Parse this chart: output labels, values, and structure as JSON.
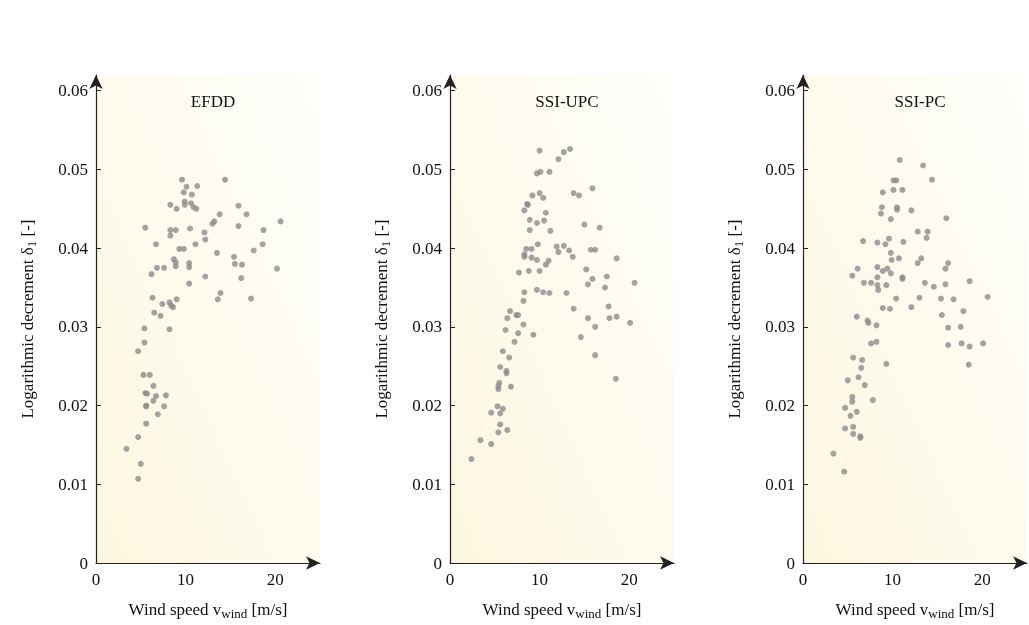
{
  "chart_data": [
    {
      "type": "scatter",
      "title": "EFDD",
      "xlabel": "Wind speed v$_{wind}$ [m/s]",
      "ylabel": "Logarithmic decrement δ$_{1}$ [-]",
      "xlim": [
        0,
        25
      ],
      "xticks": [
        0,
        10,
        20
      ],
      "ylim": [
        0,
        0.062
      ],
      "yticks": [
        0,
        0.01,
        0.02,
        0.03,
        0.04,
        0.05,
        0.06
      ],
      "grid": false,
      "marker": "circle",
      "color": "#8c8c8c",
      "x": [
        9.6,
        14.4,
        10.1,
        11.3,
        9.8,
        10.7,
        8.3,
        9.0,
        9.9,
        9.9,
        10.6,
        10.9,
        11.2,
        15.9,
        16.8,
        13.8,
        13.2,
        13.0,
        20.6,
        5.5,
        15.9,
        8.3,
        8.9,
        10.5,
        8.3,
        12.1,
        18.7,
        12.2,
        6.7,
        11.1,
        18.6,
        9.3,
        9.8,
        17.6,
        13.5,
        15.4,
        8.7,
        8.9,
        8.9,
        10.4,
        10.4,
        15.5,
        16.3,
        20.2,
        6.8,
        7.6,
        6.2,
        12.2,
        16.2,
        10.4,
        13.9,
        13.6,
        17.3,
        6.3,
        9.0,
        7.4,
        8.2,
        8.4,
        8.6,
        6.5,
        7.2,
        5.4,
        8.2,
        5.4,
        4.7,
        5.3,
        6.0,
        6.4,
        5.5,
        5.7,
        6.7,
        7.8,
        6.4,
        5.6,
        5.6,
        7.6,
        6.9,
        5.6,
        4.7,
        3.4,
        5.0,
        4.7
      ],
      "values": [
        0.0487,
        0.0487,
        0.0478,
        0.0479,
        0.0471,
        0.0468,
        0.0455,
        0.045,
        0.0459,
        0.0455,
        0.0457,
        0.0452,
        0.045,
        0.0454,
        0.0443,
        0.0443,
        0.0434,
        0.0431,
        0.0434,
        0.0426,
        0.0428,
        0.0423,
        0.0423,
        0.0425,
        0.0416,
        0.042,
        0.0423,
        0.0411,
        0.0405,
        0.0405,
        0.0405,
        0.0399,
        0.0399,
        0.0397,
        0.0394,
        0.0389,
        0.0386,
        0.0382,
        0.0377,
        0.0381,
        0.0376,
        0.038,
        0.0379,
        0.0374,
        0.0375,
        0.0375,
        0.0367,
        0.0364,
        0.0362,
        0.0355,
        0.0343,
        0.0335,
        0.0336,
        0.0337,
        0.0335,
        0.0329,
        0.0331,
        0.0327,
        0.0325,
        0.0318,
        0.0314,
        0.0298,
        0.0297,
        0.028,
        0.0269,
        0.0239,
        0.0239,
        0.0225,
        0.0216,
        0.0215,
        0.0212,
        0.0213,
        0.0206,
        0.02,
        0.0199,
        0.0199,
        0.0189,
        0.0177,
        0.016,
        0.0145,
        0.0126,
        0.0107
      ]
    },
    {
      "type": "scatter",
      "title": "SSI-UPC",
      "xlabel": "Wind speed v$_{wind}$ [m/s]",
      "ylabel": "Logarithmic decrement δ$_{1}$ [-]",
      "xlim": [
        0,
        25
      ],
      "xticks": [
        0,
        10,
        20
      ],
      "ylim": [
        0,
        0.062
      ],
      "yticks": [
        0,
        0.01,
        0.02,
        0.03,
        0.04,
        0.05,
        0.06
      ],
      "grid": false,
      "marker": "circle",
      "color": "#8c8c8c",
      "x": [
        10.0,
        12.7,
        13.4,
        12.1,
        9.7,
        10.1,
        11.1,
        15.9,
        13.8,
        14.4,
        8.7,
        9.2,
        10.0,
        10.4,
        8.3,
        8.6,
        9.7,
        10.7,
        10.5,
        8.9,
        8.9,
        11.2,
        15.0,
        16.7,
        8.5,
        9.8,
        9.1,
        8.3,
        8.3,
        9.1,
        9.7,
        11.9,
        12.1,
        12.7,
        13.3,
        13.7,
        15.7,
        16.2,
        18.6,
        11.0,
        10.7,
        8.8,
        10.0,
        7.7,
        15.2,
        17.5,
        15.9,
        20.6,
        15.4,
        17.3,
        9.7,
        10.4,
        11.1,
        13.0,
        8.3,
        8.2,
        17.7,
        13.8,
        6.7,
        6.4,
        7.4,
        7.6,
        15.4,
        17.8,
        18.6,
        16.2,
        20.1,
        8.2,
        7.6,
        9.3,
        6.2,
        7.2,
        14.6,
        5.9,
        6.6,
        16.2,
        5.6,
        6.3,
        6.3,
        5.5,
        5.4,
        5.4,
        6.8,
        18.5,
        5.3,
        5.9,
        4.6,
        5.6,
        5.6,
        5.4,
        6.4,
        3.4,
        4.6,
        2.4
      ],
      "values": [
        0.0524,
        0.0522,
        0.0526,
        0.0513,
        0.0495,
        0.0497,
        0.0497,
        0.0476,
        0.047,
        0.0467,
        0.0455,
        0.0467,
        0.047,
        0.0464,
        0.0448,
        0.0456,
        0.0432,
        0.0445,
        0.0435,
        0.0436,
        0.0423,
        0.0422,
        0.043,
        0.0426,
        0.0399,
        0.0405,
        0.0399,
        0.0389,
        0.0392,
        0.0388,
        0.0385,
        0.0402,
        0.0395,
        0.0403,
        0.0397,
        0.0389,
        0.0398,
        0.0398,
        0.0387,
        0.0384,
        0.0379,
        0.0371,
        0.0371,
        0.0369,
        0.0373,
        0.0364,
        0.0361,
        0.0356,
        0.0354,
        0.035,
        0.0347,
        0.0344,
        0.0343,
        0.0343,
        0.0344,
        0.0333,
        0.0326,
        0.0323,
        0.032,
        0.0311,
        0.0315,
        0.0315,
        0.0311,
        0.0311,
        0.0313,
        0.03,
        0.0305,
        0.0303,
        0.0292,
        0.029,
        0.0296,
        0.0281,
        0.0287,
        0.0269,
        0.0261,
        0.0264,
        0.0249,
        0.0244,
        0.0241,
        0.0229,
        0.0225,
        0.0221,
        0.0224,
        0.0234,
        0.0199,
        0.0196,
        0.0191,
        0.019,
        0.0176,
        0.0166,
        0.0169,
        0.0156,
        0.0151,
        0.0132
      ]
    },
    {
      "type": "scatter",
      "title": "SSI-PC",
      "xlabel": "Wind speed v$_{wind}$ [m/s]",
      "ylabel": "Logarithmic decrement δ$_{1}$ [-]",
      "xlim": [
        0,
        25
      ],
      "xticks": [
        0,
        10,
        20
      ],
      "ylim": [
        0,
        0.062
      ],
      "yticks": [
        0,
        0.01,
        0.02,
        0.03,
        0.04,
        0.05,
        0.06
      ],
      "grid": false,
      "marker": "circle",
      "color": "#8c8c8c",
      "x": [
        10.8,
        13.4,
        14.4,
        10.1,
        10.4,
        10.1,
        11.1,
        8.9,
        8.8,
        10.5,
        10.5,
        12.1,
        8.7,
        9.8,
        16.0,
        12.8,
        13.9,
        13.8,
        9.6,
        6.7,
        8.3,
        11.2,
        9.2,
        9.8,
        9.9,
        10.7,
        13.2,
        12.8,
        16.2,
        8.3,
        6.1,
        15.9,
        9.4,
        8.9,
        9.8,
        5.5,
        8.3,
        11.1,
        11.1,
        18.6,
        6.8,
        7.6,
        13.6,
        8.3,
        9.3,
        14.6,
        15.9,
        8.4,
        20.6,
        10.4,
        13.0,
        15.4,
        16.8,
        8.9,
        9.7,
        12.1,
        17.9,
        6.0,
        15.5,
        7.2,
        7.3,
        8.2,
        16.2,
        17.6,
        7.6,
        8.2,
        16.2,
        17.7,
        18.6,
        20.1,
        5.6,
        6.6,
        9.3,
        18.5,
        6.5,
        6.2,
        5.0,
        6.9,
        5.5,
        5.5,
        4.7,
        7.8,
        6.0,
        5.3,
        4.7,
        5.6,
        5.6,
        6.4,
        6.4,
        3.4,
        4.6
      ],
      "values": [
        0.0512,
        0.0505,
        0.0487,
        0.0486,
        0.0486,
        0.0474,
        0.0474,
        0.0471,
        0.0452,
        0.0452,
        0.0449,
        0.0448,
        0.0444,
        0.0437,
        0.0438,
        0.0421,
        0.0421,
        0.0413,
        0.0412,
        0.0409,
        0.0407,
        0.0408,
        0.0405,
        0.0394,
        0.0385,
        0.0387,
        0.0387,
        0.0381,
        0.0381,
        0.0376,
        0.0374,
        0.0374,
        0.0374,
        0.0371,
        0.0368,
        0.0365,
        0.0363,
        0.0363,
        0.0361,
        0.0358,
        0.0356,
        0.0356,
        0.0356,
        0.0353,
        0.0353,
        0.0351,
        0.0354,
        0.0347,
        0.0338,
        0.0336,
        0.0337,
        0.0336,
        0.0335,
        0.0324,
        0.0323,
        0.0325,
        0.032,
        0.0313,
        0.0315,
        0.0308,
        0.0305,
        0.0302,
        0.0299,
        0.03,
        0.0279,
        0.0281,
        0.0277,
        0.0279,
        0.0275,
        0.0279,
        0.0261,
        0.0258,
        0.0253,
        0.0252,
        0.0248,
        0.0236,
        0.0232,
        0.0226,
        0.0211,
        0.0205,
        0.0197,
        0.0207,
        0.0192,
        0.0187,
        0.0171,
        0.0173,
        0.0164,
        0.0161,
        0.0159,
        0.0139,
        0.0116
      ]
    }
  ]
}
